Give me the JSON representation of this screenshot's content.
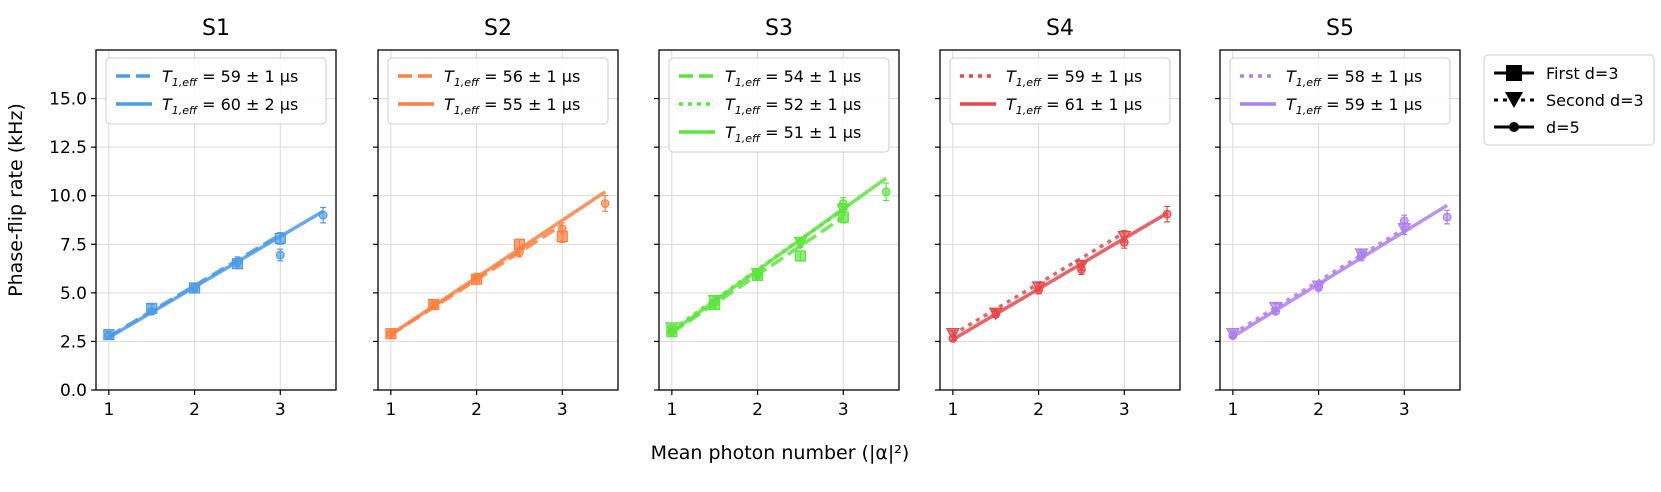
{
  "figure": {
    "xlabel": "Mean photon number (|α|²)",
    "ylabel": "Phase-flip rate (kHz)"
  },
  "legend_styles": [
    {
      "label": "First d=3",
      "dash": "solid",
      "marker": "square"
    },
    {
      "label": "Second d=3",
      "dash": "dotted",
      "marker": "triangle-down"
    },
    {
      "label": "d=5",
      "dash": "solid",
      "marker": "circle"
    }
  ],
  "chart_data": [
    {
      "type": "scatter",
      "title": "S1",
      "color": "#4c9be8",
      "xlim": [
        0.85,
        3.65
      ],
      "ylim": [
        0.0,
        17.5
      ],
      "xticks": [
        "1",
        "2",
        "3"
      ],
      "yticks": [
        "0.0",
        "2.5",
        "5.0",
        "7.5",
        "10.0",
        "12.5",
        "15.0"
      ],
      "fits": [
        {
          "dash": "dashed",
          "prefix": "T",
          "subscript": "1,eff",
          "text": " = 59 ± 1  μs",
          "x": [
            1.0,
            3.0
          ],
          "y": [
            2.75,
            8.0
          ]
        },
        {
          "dash": "solid",
          "prefix": "T",
          "subscript": "1,eff",
          "text": " = 60 ± 2  μs",
          "x": [
            1.0,
            3.5
          ],
          "y": [
            2.7,
            9.2
          ]
        }
      ],
      "points": [
        {
          "marker": "square",
          "x": [
            1.0,
            1.5,
            2.0,
            2.5,
            3.0
          ],
          "y": [
            2.85,
            4.2,
            5.25,
            6.5,
            7.8
          ],
          "err": [
            0.15,
            0.2,
            0.2,
            0.25,
            0.3
          ]
        },
        {
          "marker": "circle",
          "x": [
            1.0,
            1.5,
            2.0,
            2.5,
            3.0,
            3.5
          ],
          "y": [
            2.8,
            4.05,
            5.3,
            6.6,
            6.95,
            9.0
          ],
          "err": [
            0.1,
            0.15,
            0.2,
            0.25,
            0.3,
            0.4
          ]
        }
      ]
    },
    {
      "type": "scatter",
      "title": "S2",
      "color": "#ff7f3f",
      "xlim": [
        0.85,
        3.65
      ],
      "ylim": [
        0.0,
        17.5
      ],
      "xticks": [
        "1",
        "2",
        "3"
      ],
      "yticks": [
        "0.0",
        "2.5",
        "5.0",
        "7.5",
        "10.0",
        "12.5",
        "15.0"
      ],
      "fits": [
        {
          "dash": "dashed",
          "prefix": "T",
          "subscript": "1,eff",
          "text": " = 56 ± 1  μs",
          "x": [
            1.0,
            3.0
          ],
          "y": [
            2.85,
            8.5
          ]
        },
        {
          "dash": "solid",
          "prefix": "T",
          "subscript": "1,eff",
          "text": " = 55 ± 1  μs",
          "x": [
            1.0,
            3.5
          ],
          "y": [
            2.85,
            10.2
          ]
        }
      ],
      "points": [
        {
          "marker": "square",
          "x": [
            1.0,
            1.5,
            2.0,
            2.5,
            3.0
          ],
          "y": [
            2.9,
            4.4,
            5.7,
            7.5,
            7.9
          ],
          "err": [
            0.15,
            0.2,
            0.2,
            0.25,
            0.3
          ]
        },
        {
          "marker": "circle",
          "x": [
            1.0,
            1.5,
            2.0,
            2.5,
            3.0,
            3.5
          ],
          "y": [
            2.9,
            4.35,
            5.8,
            7.1,
            8.3,
            9.6
          ],
          "err": [
            0.1,
            0.15,
            0.2,
            0.25,
            0.3,
            0.4
          ]
        }
      ]
    },
    {
      "type": "scatter",
      "title": "S3",
      "color": "#5ce53c",
      "xlim": [
        0.85,
        3.65
      ],
      "ylim": [
        0.0,
        17.5
      ],
      "xticks": [
        "1",
        "2",
        "3"
      ],
      "yticks": [
        "0.0",
        "2.5",
        "5.0",
        "7.5",
        "10.0",
        "12.5",
        "15.0"
      ],
      "fits": [
        {
          "dash": "dashed",
          "prefix": "T",
          "subscript": "1,eff",
          "text": " = 54 ± 1  μs",
          "x": [
            1.0,
            3.0
          ],
          "y": [
            2.95,
            8.9
          ]
        },
        {
          "dash": "dotted",
          "prefix": "T",
          "subscript": "1,eff",
          "text": " = 52 ± 1  μs",
          "x": [
            1.0,
            3.0
          ],
          "y": [
            3.1,
            9.3
          ]
        },
        {
          "dash": "solid",
          "prefix": "T",
          "subscript": "1,eff",
          "text": " = 51 ± 1  μs",
          "x": [
            1.0,
            3.5
          ],
          "y": [
            3.0,
            10.9
          ]
        }
      ],
      "points": [
        {
          "marker": "square",
          "x": [
            1.0,
            1.5,
            2.0,
            2.5,
            3.0
          ],
          "y": [
            3.0,
            4.4,
            5.9,
            6.9,
            8.9
          ],
          "err": [
            0.15,
            0.2,
            0.2,
            0.25,
            0.3
          ]
        },
        {
          "marker": "triangle-down",
          "x": [
            1.0,
            1.5,
            2.0,
            2.5,
            3.0
          ],
          "y": [
            3.2,
            4.6,
            6.0,
            7.6,
            9.3
          ],
          "err": [
            0.15,
            0.2,
            0.2,
            0.25,
            0.3
          ]
        },
        {
          "marker": "circle",
          "x": [
            1.0,
            1.5,
            2.0,
            2.5,
            3.0,
            3.5
          ],
          "y": [
            3.0,
            4.5,
            5.95,
            7.6,
            9.6,
            10.2
          ],
          "err": [
            0.1,
            0.15,
            0.2,
            0.25,
            0.3,
            0.45
          ]
        }
      ]
    },
    {
      "type": "scatter",
      "title": "S4",
      "color": "#e8474a",
      "xlim": [
        0.85,
        3.65
      ],
      "ylim": [
        0.0,
        17.5
      ],
      "xticks": [
        "1",
        "2",
        "3"
      ],
      "yticks": [
        "0.0",
        "2.5",
        "5.0",
        "7.5",
        "10.0",
        "12.5",
        "15.0"
      ],
      "fits": [
        {
          "dash": "dotted",
          "prefix": "T",
          "subscript": "1,eff",
          "text": " = 59 ± 1  μs",
          "x": [
            1.0,
            3.0
          ],
          "y": [
            2.85,
            8.1
          ]
        },
        {
          "dash": "solid",
          "prefix": "T",
          "subscript": "1,eff",
          "text": " = 61 ± 1  μs",
          "x": [
            1.0,
            3.5
          ],
          "y": [
            2.6,
            9.1
          ]
        }
      ],
      "points": [
        {
          "marker": "triangle-down",
          "x": [
            1.0,
            1.5,
            2.0,
            2.5,
            3.0
          ],
          "y": [
            2.9,
            3.95,
            5.3,
            6.4,
            7.9
          ],
          "err": [
            0.15,
            0.2,
            0.2,
            0.25,
            0.3
          ]
        },
        {
          "marker": "circle",
          "x": [
            1.0,
            1.5,
            2.0,
            2.5,
            3.0,
            3.5
          ],
          "y": [
            2.65,
            3.9,
            5.15,
            6.2,
            7.6,
            9.05
          ],
          "err": [
            0.1,
            0.15,
            0.2,
            0.25,
            0.3,
            0.4
          ]
        }
      ]
    },
    {
      "type": "scatter",
      "title": "S5",
      "color": "#ad7ff0",
      "xlim": [
        0.85,
        3.65
      ],
      "ylim": [
        0.0,
        17.5
      ],
      "xticks": [
        "1",
        "2",
        "3"
      ],
      "yticks": [
        "0.0",
        "2.5",
        "5.0",
        "7.5",
        "10.0",
        "12.5",
        "15.0"
      ],
      "fits": [
        {
          "dash": "dotted",
          "prefix": "T",
          "subscript": "1,eff",
          "text": " = 58 ± 1  μs",
          "x": [
            1.0,
            3.0
          ],
          "y": [
            2.9,
            8.3
          ]
        },
        {
          "dash": "solid",
          "prefix": "T",
          "subscript": "1,eff",
          "text": " = 59 ± 1  μs",
          "x": [
            1.0,
            3.5
          ],
          "y": [
            2.75,
            9.5
          ]
        }
      ],
      "points": [
        {
          "marker": "triangle-down",
          "x": [
            1.0,
            1.5,
            2.0,
            2.5,
            3.0
          ],
          "y": [
            2.9,
            4.25,
            5.35,
            7.0,
            8.3
          ],
          "err": [
            0.15,
            0.2,
            0.2,
            0.25,
            0.3
          ]
        },
        {
          "marker": "circle",
          "x": [
            1.0,
            1.5,
            2.0,
            2.5,
            3.0,
            3.5
          ],
          "y": [
            2.8,
            4.05,
            5.3,
            6.9,
            8.7,
            8.9
          ],
          "err": [
            0.1,
            0.15,
            0.2,
            0.25,
            0.3,
            0.35
          ]
        }
      ]
    }
  ]
}
